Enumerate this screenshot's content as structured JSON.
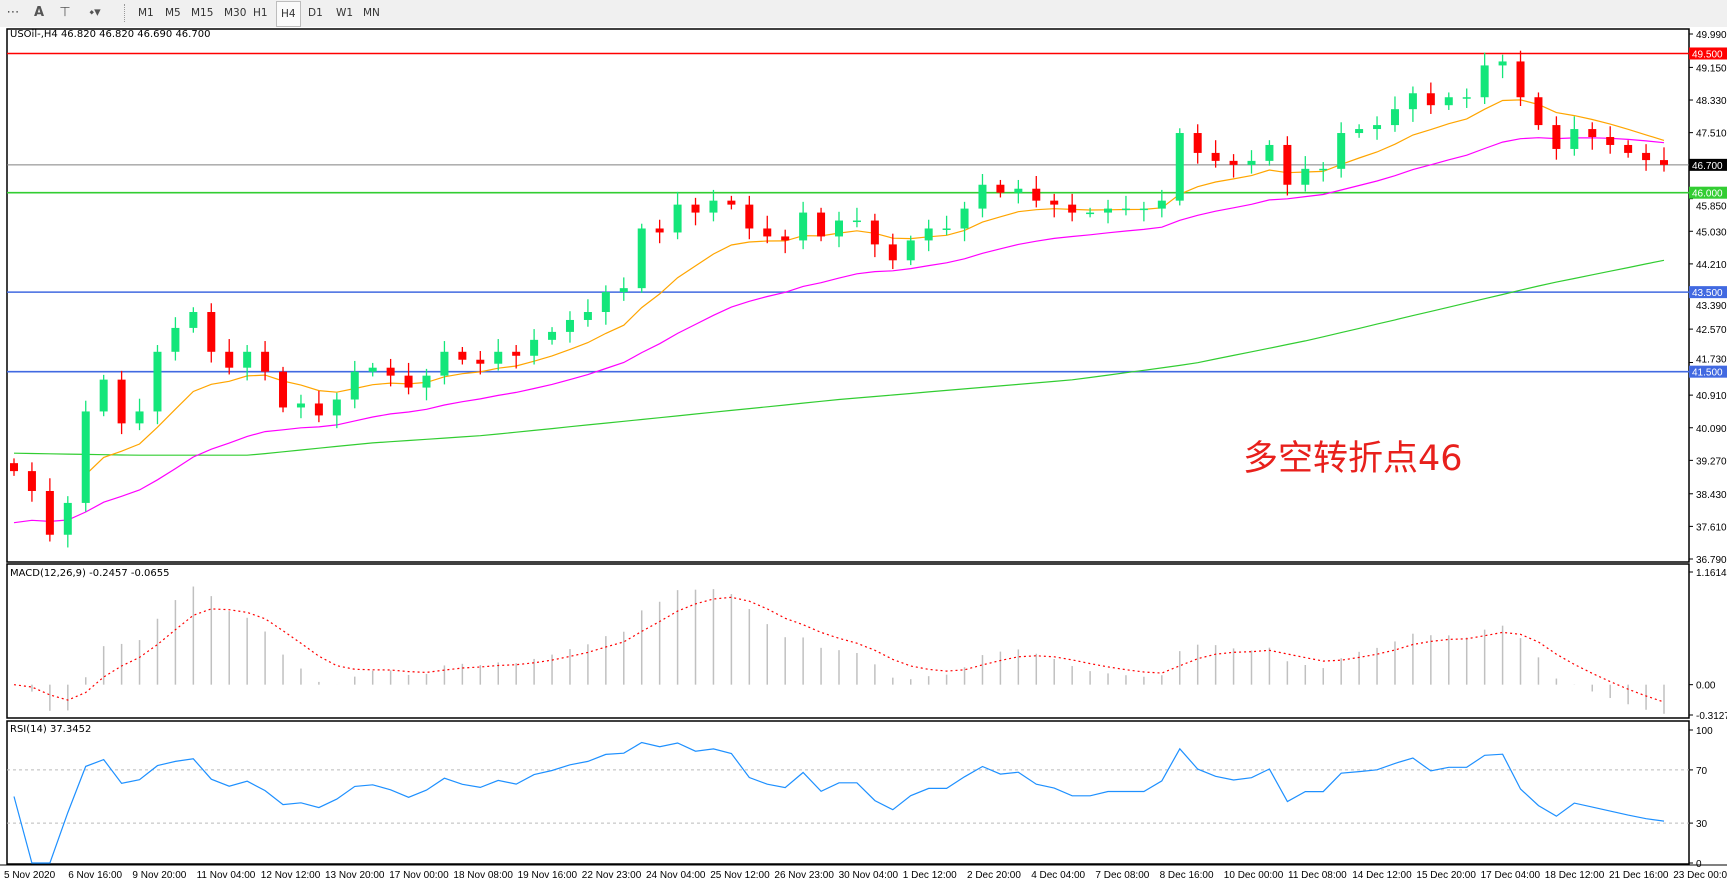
{
  "toolbar": {
    "icons": [
      "grid-f-icon",
      "text-a-icon",
      "text-box-icon",
      "shapes-icon"
    ],
    "timeframes": [
      "M1",
      "M5",
      "M15",
      "M30",
      "H1",
      "H4",
      "D1",
      "W1",
      "MN"
    ],
    "active_timeframe": "H4"
  },
  "main": {
    "title": "USOil-,H4  46.820 46.820 46.690 46.700",
    "annotation": "多空转折点46",
    "price_ticks": [
      "49.990",
      "49.150",
      "48.330",
      "47.510",
      "45.850",
      "45.030",
      "44.210",
      "43.390",
      "42.570",
      "41.730",
      "40.910",
      "40.090",
      "39.270",
      "38.430",
      "37.610",
      "36.790"
    ],
    "levels": [
      {
        "value": 49.5,
        "label": "49.500",
        "color": "#ff0000"
      },
      {
        "value": 46.0,
        "label": "46.000",
        "color": "#32cd32"
      },
      {
        "value": 43.5,
        "label": "43.500",
        "color": "#4169e1"
      },
      {
        "value": 41.5,
        "label": "41.500",
        "color": "#4169e1"
      }
    ],
    "current_price": {
      "value": 46.7,
      "label": "46.700",
      "color": "#000000"
    }
  },
  "macd": {
    "title": "MACD(12,26,9) -0.2457 -0.0655",
    "ticks": [
      "1.1614",
      "0.00",
      "-0.3127"
    ],
    "signal_color": "#ff0000",
    "hist_color": "#c0c0c0"
  },
  "rsi": {
    "title": "RSI(14) 37.3452",
    "ticks": [
      "100",
      "70",
      "30",
      "0"
    ],
    "color": "#1e90ff"
  },
  "time_labels": [
    "5 Nov 2020",
    "6 Nov 16:00",
    "9 Nov 20:00",
    "11 Nov 04:00",
    "12 Nov 12:00",
    "13 Nov 20:00",
    "17 Nov 00:00",
    "18 Nov 08:00",
    "19 Nov 16:00",
    "22 Nov 23:00",
    "24 Nov 04:00",
    "25 Nov 12:00",
    "26 Nov 23:00",
    "30 Nov 04:00",
    "1 Dec 12:00",
    "2 Dec 20:00",
    "4 Dec 04:00",
    "7 Dec 08:00",
    "8 Dec 16:00",
    "10 Dec 00:00",
    "11 Dec 08:00",
    "14 Dec 12:00",
    "15 Dec 20:00",
    "17 Dec 04:00",
    "18 Dec 12:00",
    "21 Dec 16:00",
    "23 Dec 00:00"
  ],
  "colors": {
    "bull": "#14e67a",
    "bear": "#ff0000",
    "ma_fast": "#ffa500",
    "ma_mid": "#ff00ff",
    "ma_slow": "#32cd32"
  },
  "chart_data": {
    "type": "candlestick",
    "symbol": "USOil-",
    "timeframe": "H4",
    "ylim": [
      36.79,
      49.99
    ],
    "first_open": 39.2,
    "close": [
      39.0,
      38.5,
      37.4,
      38.2,
      40.5,
      41.3,
      40.2,
      40.5,
      42.0,
      42.6,
      43.0,
      42.0,
      41.6,
      42.0,
      41.5,
      40.6,
      40.7,
      40.4,
      40.8,
      41.5,
      41.6,
      41.4,
      41.1,
      41.4,
      42.0,
      41.8,
      41.7,
      42.0,
      41.9,
      42.3,
      42.5,
      42.8,
      43.0,
      43.5,
      43.6,
      45.1,
      45.0,
      45.7,
      45.5,
      45.8,
      45.7,
      45.1,
      44.9,
      44.8,
      45.5,
      44.9,
      45.3,
      45.3,
      44.7,
      44.3,
      44.8,
      45.1,
      45.1,
      45.6,
      46.2,
      46.0,
      46.1,
      45.8,
      45.7,
      45.5,
      45.5,
      45.6,
      45.6,
      45.6,
      45.8,
      47.5,
      47.0,
      46.8,
      46.7,
      46.8,
      47.2,
      46.2,
      46.6,
      46.6,
      47.5,
      47.6,
      47.7,
      48.1,
      48.5,
      48.2,
      48.4,
      48.4,
      49.2,
      49.3,
      48.4,
      47.7,
      47.1,
      47.6,
      47.4,
      47.2,
      47.0,
      46.82,
      46.7
    ],
    "ma_slow": [
      39.45,
      39.4,
      39.4,
      39.7,
      39.9,
      40.2,
      40.5,
      40.8,
      41.05,
      41.3,
      41.7,
      42.3,
      43.0,
      43.7,
      44.3
    ],
    "macd_ylim": [
      -0.3127,
      1.1614
    ],
    "rsi_ylim": [
      0,
      100
    ],
    "rsi_levels": [
      30,
      70
    ]
  }
}
